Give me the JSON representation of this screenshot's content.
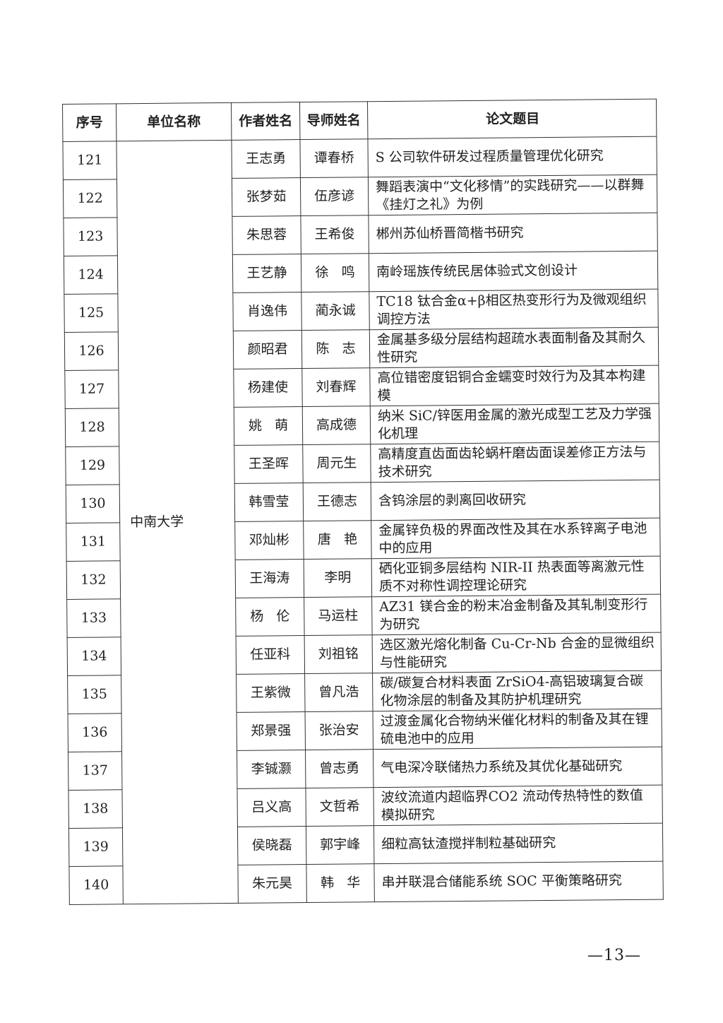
{
  "table": {
    "headers": [
      "序号",
      "单位名称",
      "作者姓名",
      "导师姓名",
      "论文题目"
    ],
    "unit": "中南大学",
    "rows": [
      {
        "no": "121",
        "author": "王志勇",
        "advisor": "谭春桥",
        "title": "S 公司软件研发过程质量管理优化研究"
      },
      {
        "no": "122",
        "author": "张梦茹",
        "advisor": "伍彦谚",
        "title": "舞蹈表演中“文化移情”的实践研究——以群舞《挂灯之礼》为例"
      },
      {
        "no": "123",
        "author": "朱思蓉",
        "advisor": "王希俊",
        "title": "郴州苏仙桥晋简楷书研究"
      },
      {
        "no": "124",
        "author": "王艺静",
        "advisor": "徐   鸣",
        "title": "南岭瑶族传统民居体验式文创设计"
      },
      {
        "no": "125",
        "author": "肖逸伟",
        "advisor": "蔺永诚",
        "title": "TC18 钛合金α+β相区热变形行为及微观组织调控方法"
      },
      {
        "no": "126",
        "author": "颜昭君",
        "advisor": "陈   志",
        "title": "金属基多级分层结构超疏水表面制备及其耐久性研究"
      },
      {
        "no": "127",
        "author": "杨建使",
        "advisor": "刘春辉",
        "title": "高位错密度铝铜合金蠕变时效行为及其本构建模"
      },
      {
        "no": "128",
        "author": "姚   萌",
        "advisor": "高成德",
        "title": "纳米 SiC/锌医用金属的激光成型工艺及力学强化机理"
      },
      {
        "no": "129",
        "author": "王圣晖",
        "advisor": "周元生",
        "title": "高精度直齿面齿轮蜗杆磨齿面误差修正方法与技术研究"
      },
      {
        "no": "130",
        "author": "韩雪莹",
        "advisor": "王德志",
        "title": "含钨涂层的剥离回收研究"
      },
      {
        "no": "131",
        "author": "邓灿彬",
        "advisor": "唐   艳",
        "title": "金属锌负极的界面改性及其在水系锌离子电池中的应用"
      },
      {
        "no": "132",
        "author": "王海涛",
        "advisor": "李明",
        "title": "硒化亚铜多层结构 NIR-II 热表面等离激元性质不对称性调控理论研究"
      },
      {
        "no": "133",
        "author": "杨   伦",
        "advisor": "马运柱",
        "title": "AZ31 镁合金的粉末冶金制备及其轧制变形行为研究"
      },
      {
        "no": "134",
        "author": "任亚科",
        "advisor": "刘祖铭",
        "title": "选区激光熔化制备 Cu-Cr-Nb 合金的显微组织与性能研究"
      },
      {
        "no": "135",
        "author": "王紫微",
        "advisor": "曾凡浩",
        "title": "碳/碳复合材料表面 ZrSiO4-高铝玻璃复合碳化物涂层的制备及其防护机理研究"
      },
      {
        "no": "136",
        "author": "郑景强",
        "advisor": "张治安",
        "title": "过渡金属化合物纳米催化材料的制备及其在锂硫电池中的应用"
      },
      {
        "no": "137",
        "author": "李铖灏",
        "advisor": "曾志勇",
        "title": "气电深冷联储热力系统及其优化基础研究"
      },
      {
        "no": "138",
        "author": "吕义高",
        "advisor": "文哲希",
        "title": "波纹流道内超临界CO2 流动传热特性的数值模拟研究"
      },
      {
        "no": "139",
        "author": "侯晓磊",
        "advisor": "郭宇峰",
        "title": "细粒高钛渣搅拌制粒基础研究"
      },
      {
        "no": "140",
        "author": "朱元昊",
        "advisor": "韩   华",
        "title": "串并联混合储能系统 SOC 平衡策略研究"
      }
    ]
  },
  "page_number": "—13—"
}
